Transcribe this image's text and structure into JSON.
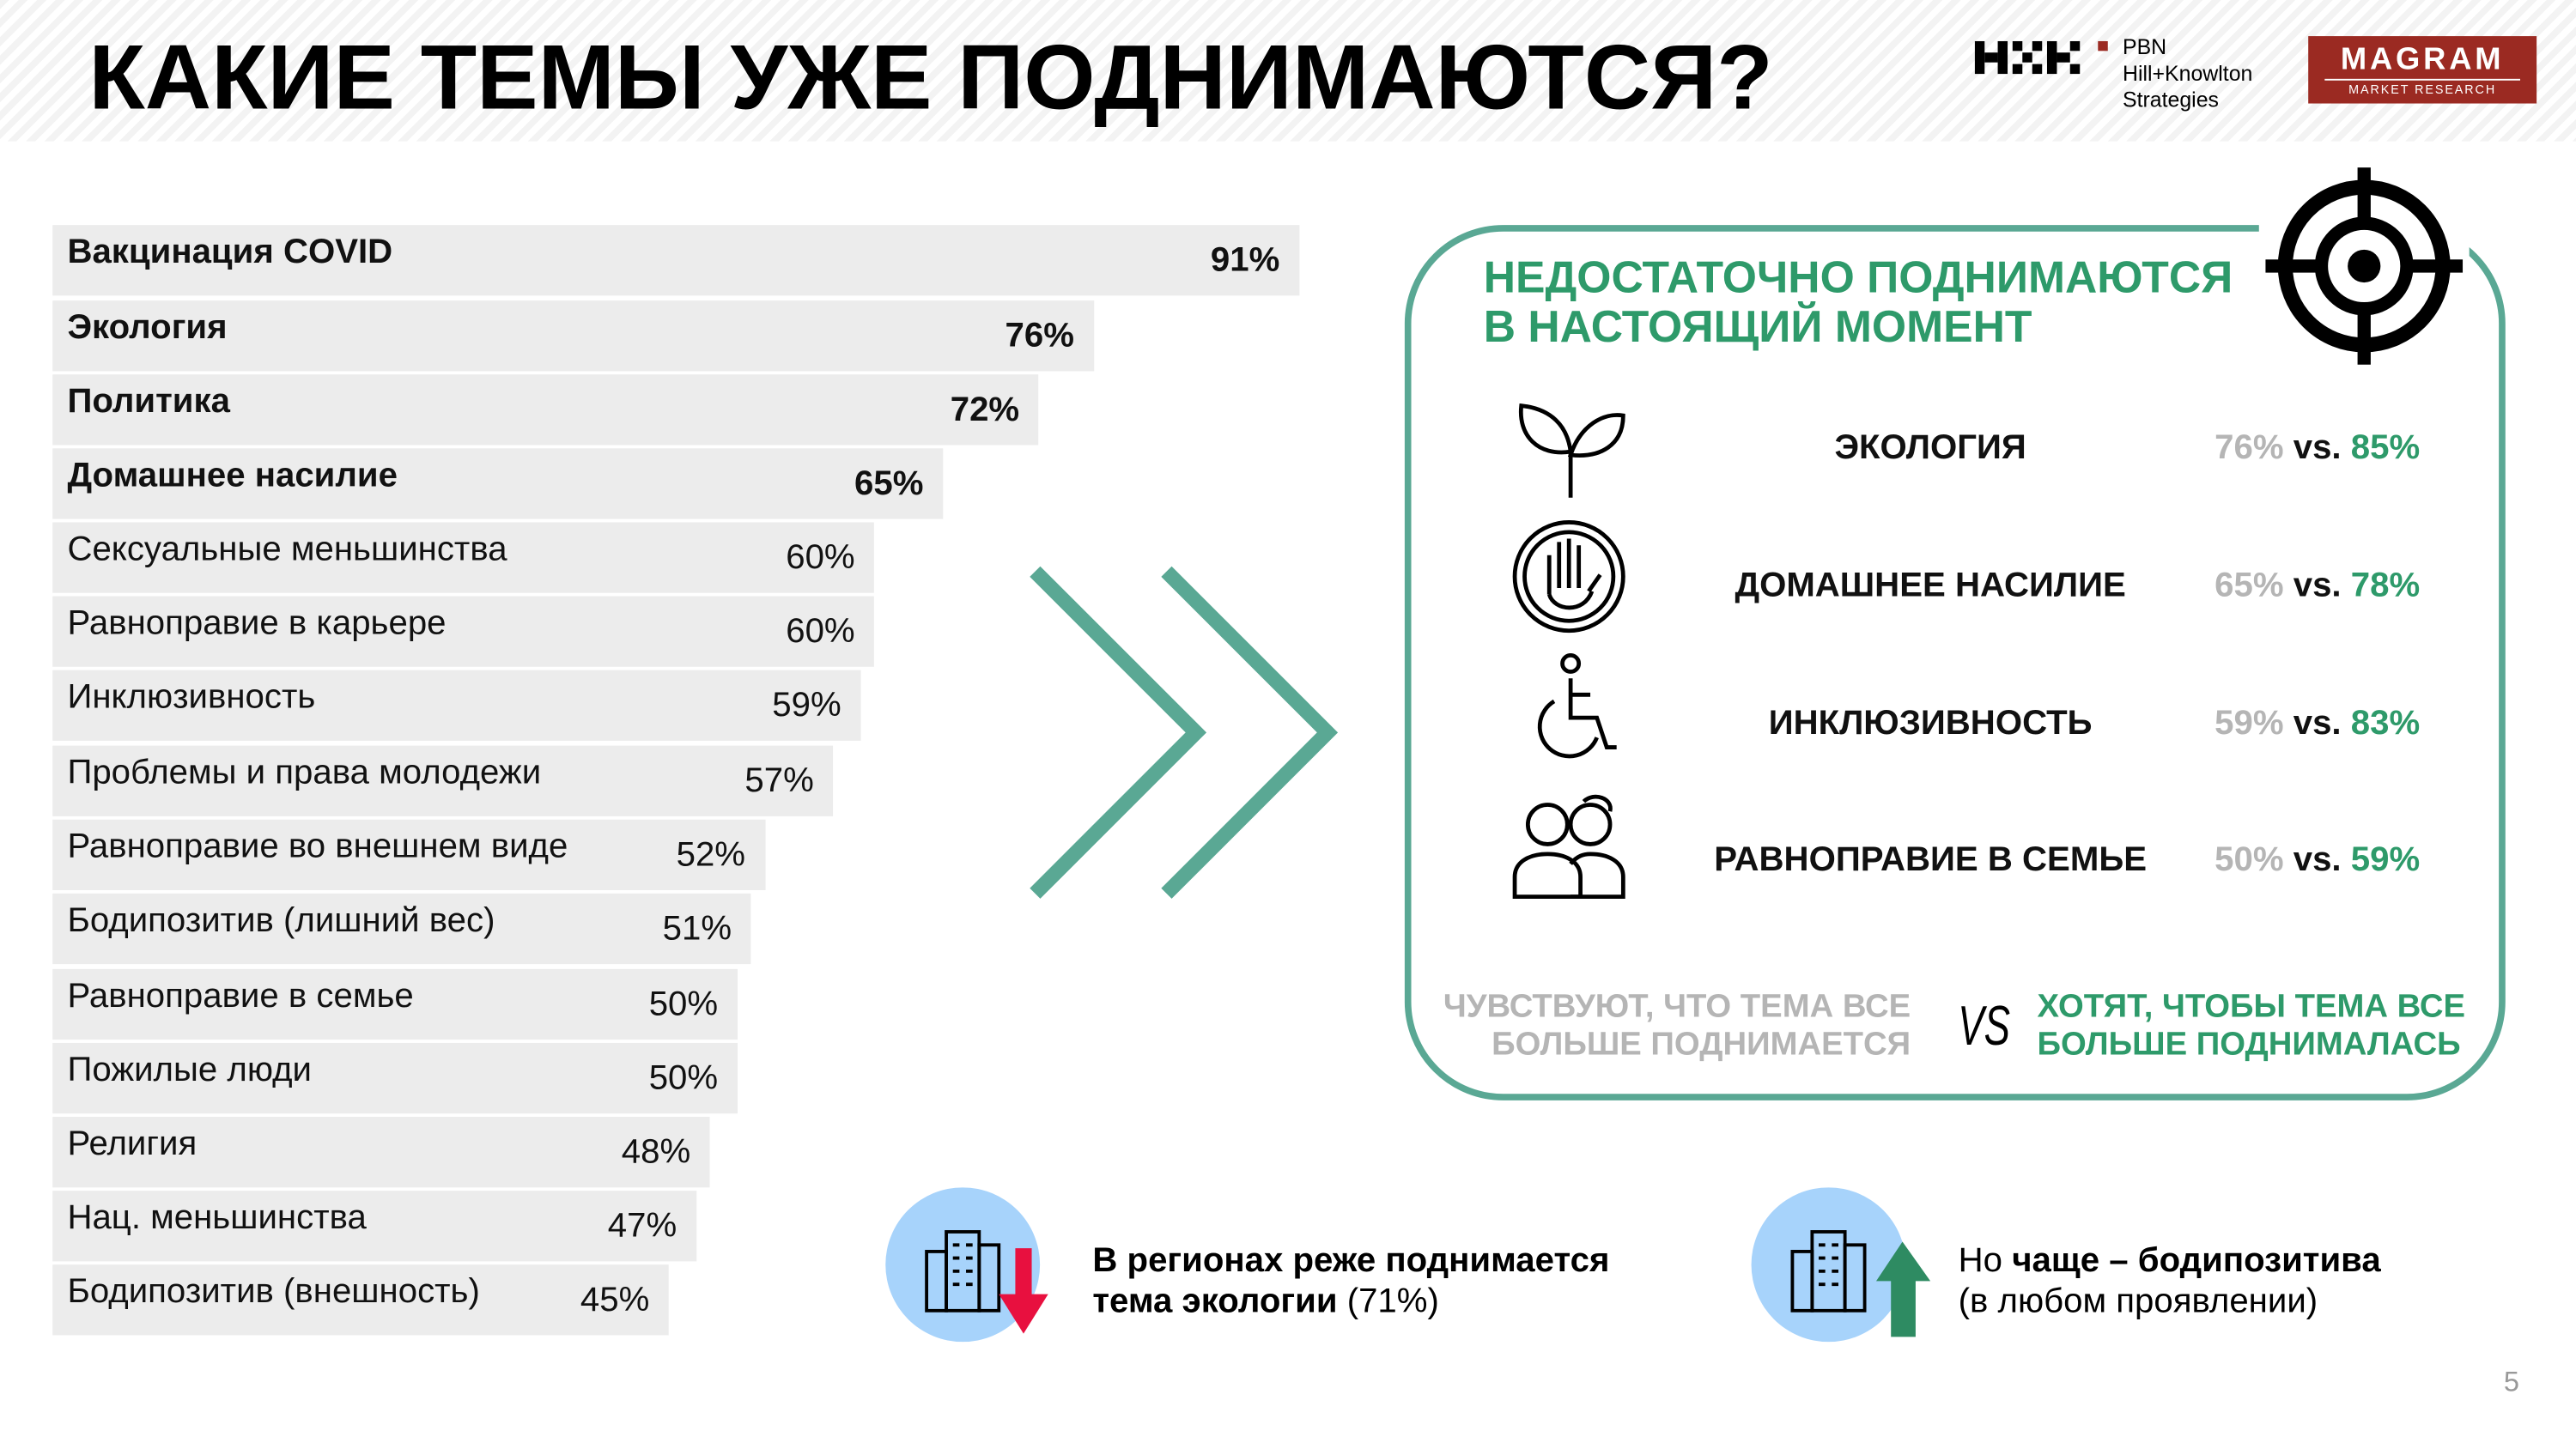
{
  "title": "КАКИЕ ТЕМЫ УЖЕ ПОДНИМАЮТСЯ?",
  "logos": {
    "pbn": [
      "PBN",
      "Hill+Knowlton",
      "Strategies"
    ],
    "magram": [
      "MAGRAM",
      "MARKET RESEARCH"
    ]
  },
  "chart_data": {
    "type": "bar",
    "orientation": "horizontal",
    "categories": [
      "Вакцинация COVID",
      "Экология",
      "Политика",
      "Домашнее насилие",
      "Сексуальные меньшинства",
      "Равноправие в карьере",
      "Инклюзивность",
      "Проблемы и права молодежи",
      "Равноправие во внешнем виде",
      "Бодипозитив  (лишний вес)",
      "Равноправие в семье",
      "Пожилые люди",
      "Религия",
      "Нац. меньшинства",
      "Бодипозитив (внешность)"
    ],
    "values": [
      91,
      76,
      72,
      65,
      60,
      60,
      59,
      57,
      52,
      51,
      50,
      50,
      48,
      47,
      45
    ],
    "labels": [
      "91%",
      "76%",
      "72%",
      "65%",
      "60%",
      "60%",
      "59%",
      "57%",
      "52%",
      "51%",
      "50%",
      "50%",
      "48%",
      "47%",
      "45%"
    ],
    "bold_count": 4,
    "xlim": [
      0,
      100
    ],
    "bar_color": "#ececec"
  },
  "panel": {
    "title": [
      "НЕДОСТАТОЧНО ПОДНИМАЮТСЯ",
      "В НАСТОЯЩИЙ МОМЕНТ"
    ],
    "rows": [
      {
        "icon": "sprout-icon",
        "name": "ЭКОЛОГИЯ",
        "felt": "76%",
        "vs": "vs.",
        "wanted": "85%"
      },
      {
        "icon": "stop-hand-icon",
        "name": "ДОМАШНЕЕ НАСИЛИЕ",
        "felt": "65%",
        "vs": "vs.",
        "wanted": "78%"
      },
      {
        "icon": "wheelchair-icon",
        "name": "ИНКЛЮЗИВНОСТЬ",
        "felt": "59%",
        "vs": "vs.",
        "wanted": "83%"
      },
      {
        "icon": "couple-icon",
        "name": "РАВНОПРАВИЕ В СЕМЬЕ",
        "felt": "50%",
        "vs": "vs.",
        "wanted": "59%"
      }
    ],
    "legend_left": [
      "ЧУВСТВУЮТ, ЧТО ТЕМА ВСЕ",
      "БОЛЬШЕ ПОДНИМАЕТСЯ"
    ],
    "legend_vs": "VS",
    "legend_right": [
      "ХОТЯТ, ЧТОБЫ ТЕМА ВСЕ",
      "БОЛЬШЕ ПОДНИМАЛАСЬ"
    ],
    "colors": {
      "accent": "#2e9a6a",
      "border": "#5aa894",
      "muted": "#b5b5b5"
    }
  },
  "notes": [
    {
      "bold1": "В регионах реже поднимается",
      "bold2": "тема экологии",
      "normal": " (71%)"
    },
    {
      "normal1": "Но ",
      "bold": "чаще – бодипозитива",
      "line2": "(в любом проявлении)"
    }
  ],
  "page_number": "5"
}
